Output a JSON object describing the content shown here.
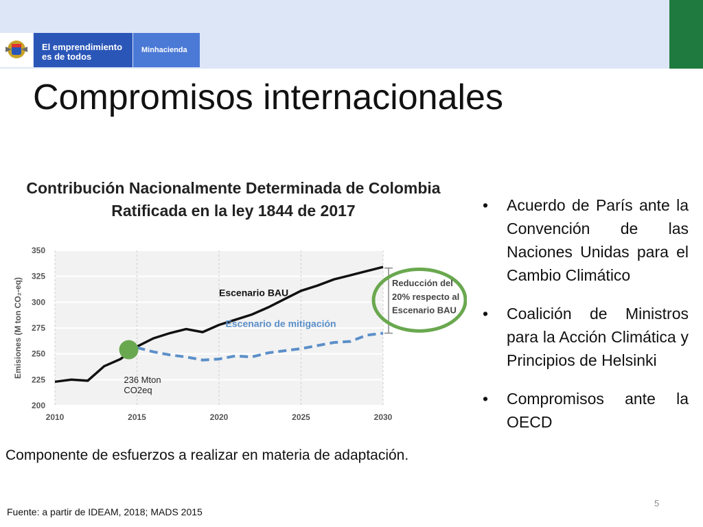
{
  "header": {
    "brand_line1": "El emprendimiento",
    "brand_line2": "es de todos",
    "ministry": "Minhacienda"
  },
  "title": "Compromisos internacionales",
  "chart_title_line1": "Contribución Nacionalmente Determinada de Colombia",
  "chart_title_line2": "Ratificada en la ley 1844 de 2017",
  "caption": "Componente de esfuerzos a realizar en materia de adaptación.",
  "bullets": [
    "Acuerdo de París ante la Convención de las Naciones Unidas para el Cambio Climático",
    "Coalición de Ministros para la Acción Climática y Principios de Helsinki",
    "Compromisos ante la OECD"
  ],
  "page_number": "5",
  "source": "Fuente: a partir de IDEAM, 2018; MADS 2015",
  "colors": {
    "bau": "#111111",
    "mitigation": "#5b8fc9",
    "highlight": "#6aa84f",
    "brand": "#2a56b8",
    "accent_green": "#1f7a3f"
  },
  "chart_data": {
    "type": "line",
    "ylabel": "Emisiones (M ton CO₂-eq)",
    "xlim": [
      2010,
      2030
    ],
    "ylim": [
      200,
      350
    ],
    "xticks": [
      2010,
      2015,
      2020,
      2025,
      2030
    ],
    "yticks": [
      200,
      225,
      250,
      275,
      300,
      325,
      350
    ],
    "grid": true,
    "series": [
      {
        "name": "Escenario BAU",
        "x": [
          2010,
          2011,
          2012,
          2013,
          2014,
          2015,
          2016,
          2017,
          2018,
          2019,
          2020,
          2021,
          2022,
          2023,
          2024,
          2025,
          2026,
          2027,
          2028,
          2029,
          2030
        ],
        "values": [
          223,
          225,
          224,
          238,
          245,
          257,
          265,
          270,
          274,
          271,
          278,
          283,
          288,
          295,
          303,
          311,
          316,
          322,
          326,
          330,
          334
        ]
      },
      {
        "name": "Escenario de mitigación",
        "x": [
          2015,
          2016,
          2017,
          2018,
          2019,
          2020,
          2021,
          2022,
          2023,
          2024,
          2025,
          2026,
          2027,
          2028,
          2029,
          2030
        ],
        "values": [
          256,
          252,
          249,
          247,
          244,
          245,
          248,
          247,
          251,
          253,
          255,
          258,
          261,
          262,
          268,
          270
        ]
      }
    ],
    "annotations": {
      "point_label_1": "236 Mton",
      "point_label_2": "CO2eq",
      "reduction_1": "Reducción del",
      "reduction_2": "20% respecto al",
      "reduction_3": "Escenario BAU"
    }
  }
}
